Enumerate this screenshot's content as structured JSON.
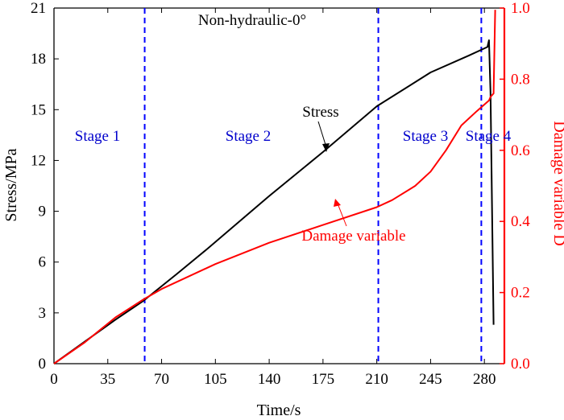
{
  "chart_data": {
    "type": "line",
    "title": "Non-hydraulic-0°",
    "xlabel": "Time/s",
    "ylabel_left": "Stress/MPa",
    "ylabel_right": "Damage variable D",
    "xlim": [
      0,
      293
    ],
    "ylim_left": [
      0,
      21
    ],
    "ylim_right": [
      0,
      1.0
    ],
    "x_ticks": [
      0,
      35,
      70,
      105,
      140,
      175,
      210,
      245,
      280
    ],
    "y_left_ticks": [
      0,
      3,
      6,
      9,
      12,
      15,
      18,
      21
    ],
    "y_right_ticks": [
      0.0,
      0.2,
      0.4,
      0.6,
      0.8,
      1.0
    ],
    "y_right_tick_labels": [
      "0.0",
      "0.2",
      "0.4",
      "0.6",
      "0.8",
      "1.0"
    ],
    "grid": false,
    "series": [
      {
        "name": "Stress",
        "axis": "left",
        "color": "#000000",
        "x": [
          0,
          20,
          40,
          58,
          80,
          100,
          140,
          175,
          210,
          245,
          270,
          282,
          283,
          284,
          286
        ],
        "y": [
          0,
          1.3,
          2.6,
          3.7,
          5.3,
          6.8,
          9.9,
          12.5,
          15.2,
          17.2,
          18.2,
          18.7,
          19.1,
          16.0,
          2.3
        ]
      },
      {
        "name": "Damage variable",
        "axis": "right",
        "color": "#ff0000",
        "x": [
          0,
          20,
          40,
          58,
          70,
          105,
          140,
          175,
          210,
          220,
          235,
          245,
          255,
          265,
          275,
          283,
          284,
          286,
          287
        ],
        "y": [
          0,
          0.06,
          0.13,
          0.18,
          0.21,
          0.28,
          0.34,
          0.39,
          0.44,
          0.46,
          0.5,
          0.54,
          0.6,
          0.67,
          0.71,
          0.74,
          0.75,
          0.76,
          0.995
        ]
      }
    ],
    "stage_lines_x": [
      59,
      211,
      278
    ],
    "stage_line_color": "#0000ff",
    "stage_labels": [
      "Stage 1",
      "Stage 2",
      "Stage 3",
      "Stage 4"
    ],
    "annotations": {
      "stress": "Stress",
      "damage": "Damage variable"
    }
  }
}
